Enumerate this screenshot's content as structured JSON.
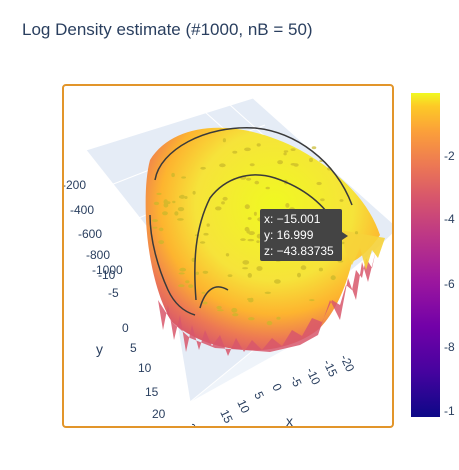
{
  "title": "Log Density estimate (#1000, nB = 50)",
  "colors": {
    "scene_border": "#e2952a",
    "pane": "#e5ecf6",
    "grid": "#ffffff",
    "tooltip_bg": "#444444",
    "contour": "#3a3a3a"
  },
  "chart_data": {
    "type": "surface",
    "colorscale": "Plasma",
    "xlabel": "x",
    "ylabel": "y",
    "zlabel": "",
    "x_ticks": [
      "-20",
      "-15",
      "-10",
      "-5",
      "0",
      "5",
      "10",
      "15",
      "2"
    ],
    "y_ticks": [
      "-10",
      "-5",
      "0",
      "5",
      "10",
      "15",
      "20"
    ],
    "z_ticks": [
      "-200",
      "-400",
      "-600",
      "-800",
      "-1000"
    ],
    "colorbar_ticks": [
      "-2",
      "-4",
      "-6",
      "-8",
      "-1"
    ],
    "hover": {
      "x": "x: −15.001",
      "y": "y: 16.999",
      "z": "z: −43.83735"
    }
  }
}
